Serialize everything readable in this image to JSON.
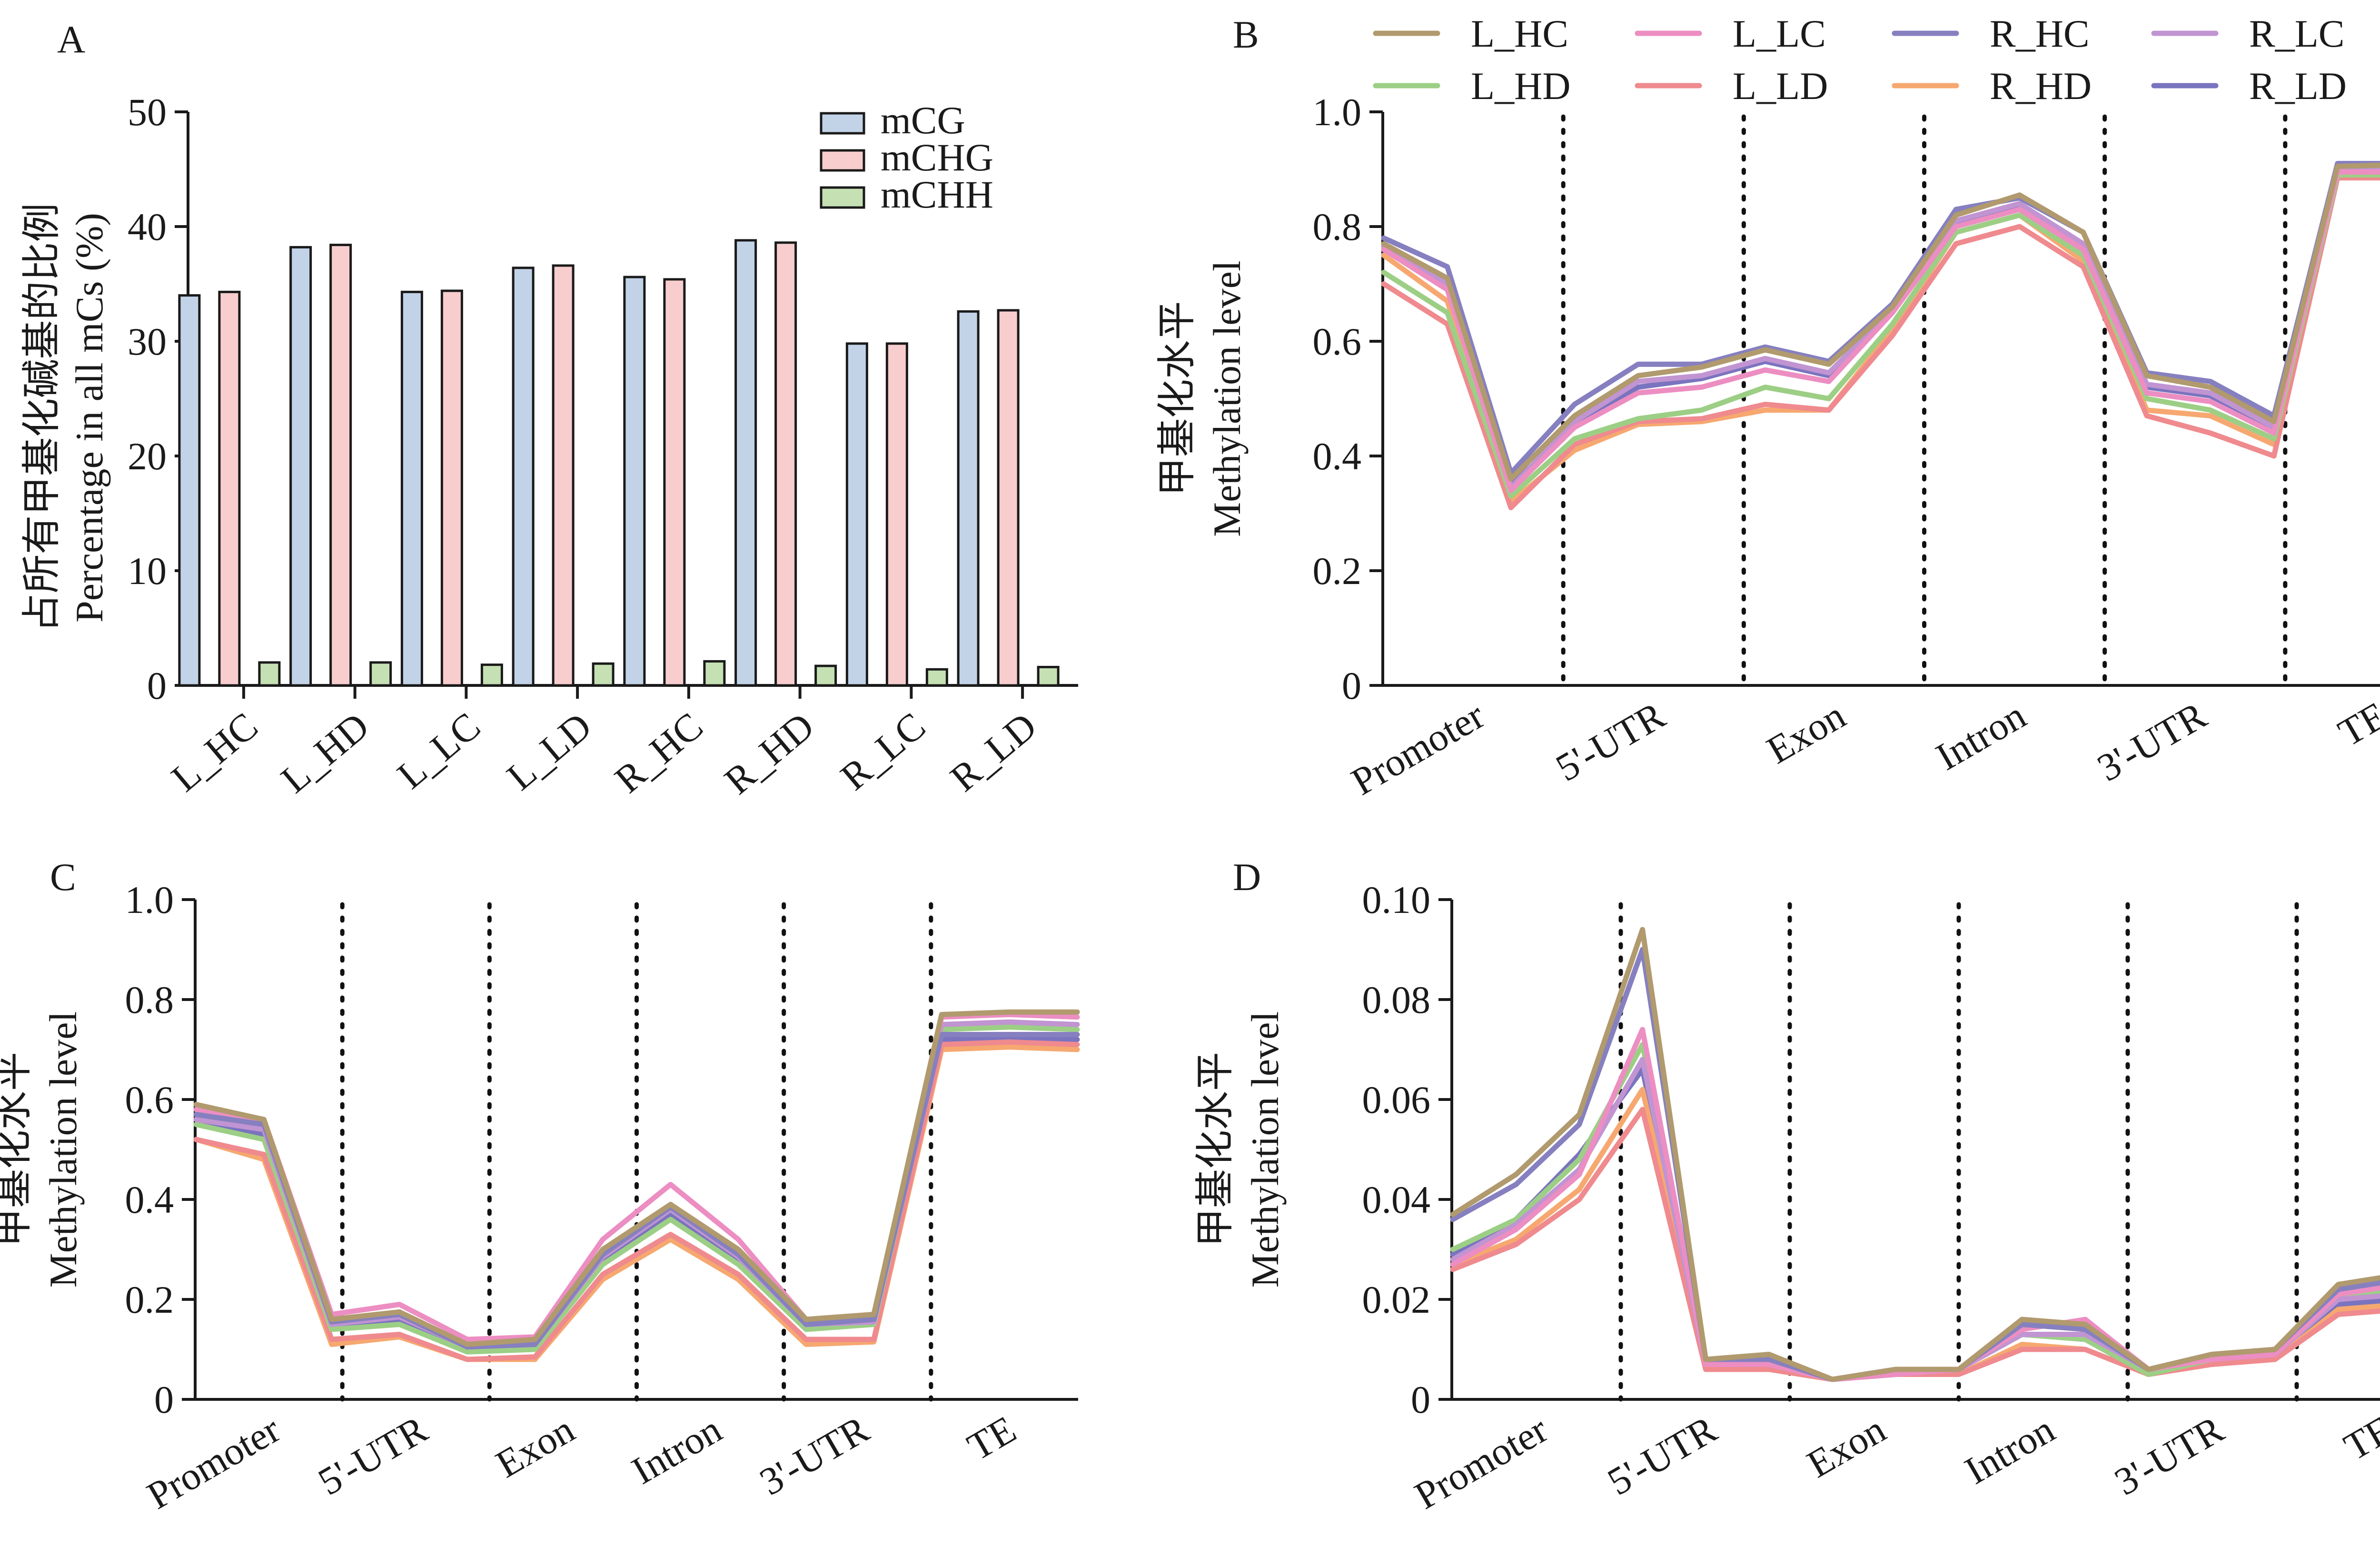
{
  "colors": {
    "bar_series": [
      "#c2d3e8",
      "#f8cdcd",
      "#c5e0b3"
    ],
    "line_series": [
      "#b09a6e",
      "#9ccf85",
      "#ec8ec2",
      "#ef8a8e",
      "#8680c0",
      "#f6a870",
      "#c194d2",
      "#7a74bf"
    ]
  },
  "chart_data": [
    {
      "panel": "A",
      "type": "bar",
      "ylabel_cn": "占所有甲基化碱基的比例",
      "ylabel": "Percentage in all mCs (%)",
      "categories": [
        "L_HC",
        "L_HD",
        "L_LC",
        "L_LD",
        "R_HC",
        "R_HD",
        "R_LC",
        "R_LD"
      ],
      "series": [
        {
          "name": "mCG",
          "values": [
            34.0,
            38.2,
            34.3,
            36.4,
            35.6,
            38.8,
            29.8,
            32.6
          ]
        },
        {
          "name": "mCHG",
          "values": [
            34.3,
            38.4,
            34.4,
            36.6,
            35.4,
            38.6,
            29.8,
            32.7
          ]
        },
        {
          "name": "mCHH",
          "values": [
            2.0,
            2.0,
            1.8,
            1.9,
            2.1,
            1.7,
            1.4,
            1.6
          ]
        }
      ],
      "ylim": [
        0,
        50
      ],
      "yticks": [
        "0",
        "10",
        "20",
        "30",
        "40",
        "50"
      ],
      "legend": "top-right"
    },
    {
      "panel": "B",
      "type": "line",
      "ylabel_cn": "甲基化水平",
      "ylabel": "Methylation level",
      "regions": [
        "Promoter",
        "5'-UTR",
        "Exon",
        "Intron",
        "3'-UTR",
        "TE"
      ],
      "ylim": [
        0,
        1.0
      ],
      "yticks": [
        "0",
        "0.2",
        "0.4",
        "0.6",
        "0.8",
        "1.0"
      ],
      "legend": "top",
      "legend_labels": [
        "L_HC",
        "L_HD",
        "L_LC",
        "L_LD",
        "R_HC",
        "R_HD",
        "R_LC",
        "R_LD"
      ],
      "series": [
        {
          "name": "L_HC",
          "values": [
            0.77,
            0.71,
            0.36,
            0.47,
            0.54,
            0.555,
            0.585,
            0.56,
            0.66,
            0.82,
            0.855,
            0.79,
            0.54,
            0.52,
            0.46,
            0.905,
            0.908,
            0.91
          ]
        },
        {
          "name": "L_HD",
          "values": [
            0.72,
            0.65,
            0.33,
            0.43,
            0.465,
            0.48,
            0.52,
            0.5,
            0.63,
            0.79,
            0.82,
            0.75,
            0.5,
            0.48,
            0.43,
            0.89,
            0.89,
            0.895
          ]
        },
        {
          "name": "L_LC",
          "values": [
            0.76,
            0.69,
            0.34,
            0.45,
            0.51,
            0.52,
            0.55,
            0.53,
            0.65,
            0.8,
            0.83,
            0.76,
            0.51,
            0.495,
            0.44,
            0.895,
            0.895,
            0.895
          ]
        },
        {
          "name": "L_LD",
          "values": [
            0.7,
            0.63,
            0.31,
            0.42,
            0.46,
            0.465,
            0.49,
            0.48,
            0.61,
            0.77,
            0.8,
            0.73,
            0.47,
            0.44,
            0.4,
            0.885,
            0.885,
            0.885
          ]
        },
        {
          "name": "R_HC",
          "values": [
            0.78,
            0.73,
            0.37,
            0.49,
            0.56,
            0.56,
            0.59,
            0.565,
            0.665,
            0.83,
            0.85,
            0.79,
            0.545,
            0.53,
            0.47,
            0.91,
            0.91,
            0.915
          ]
        },
        {
          "name": "R_HD",
          "values": [
            0.75,
            0.67,
            0.32,
            0.41,
            0.455,
            0.46,
            0.48,
            0.48,
            0.62,
            0.79,
            0.82,
            0.74,
            0.48,
            0.47,
            0.42,
            0.89,
            0.89,
            0.89
          ]
        },
        {
          "name": "R_LC",
          "values": [
            0.765,
            0.7,
            0.345,
            0.46,
            0.53,
            0.54,
            0.57,
            0.545,
            0.655,
            0.81,
            0.84,
            0.77,
            0.525,
            0.51,
            0.45,
            0.9,
            0.9,
            0.9
          ]
        },
        {
          "name": "R_LD",
          "values": [
            0.76,
            0.7,
            0.35,
            0.45,
            0.52,
            0.535,
            0.565,
            0.54,
            0.65,
            0.805,
            0.835,
            0.77,
            0.52,
            0.505,
            0.445,
            0.9,
            0.898,
            0.9
          ]
        }
      ]
    },
    {
      "panel": "C",
      "type": "line",
      "ylabel_cn": "甲基化水平",
      "ylabel": "Methylation level",
      "regions": [
        "Promoter",
        "5'-UTR",
        "Exon",
        "Intron",
        "3'-UTR",
        "TE"
      ],
      "ylim": [
        0,
        1.0
      ],
      "yticks": [
        "0",
        "0.2",
        "0.4",
        "0.6",
        "0.8",
        "1.0"
      ],
      "series": [
        {
          "name": "L_HC",
          "values": [
            0.59,
            0.56,
            0.16,
            0.175,
            0.11,
            0.12,
            0.3,
            0.39,
            0.3,
            0.16,
            0.17,
            0.77,
            0.775,
            0.775
          ]
        },
        {
          "name": "L_HD",
          "values": [
            0.55,
            0.52,
            0.14,
            0.15,
            0.095,
            0.1,
            0.27,
            0.36,
            0.27,
            0.14,
            0.15,
            0.74,
            0.745,
            0.74
          ]
        },
        {
          "name": "L_LC",
          "values": [
            0.58,
            0.56,
            0.17,
            0.19,
            0.12,
            0.125,
            0.32,
            0.43,
            0.32,
            0.16,
            0.17,
            0.765,
            0.77,
            0.765
          ]
        },
        {
          "name": "L_LD",
          "values": [
            0.52,
            0.49,
            0.12,
            0.13,
            0.08,
            0.085,
            0.25,
            0.33,
            0.25,
            0.12,
            0.12,
            0.71,
            0.715,
            0.71
          ]
        },
        {
          "name": "R_HC",
          "values": [
            0.57,
            0.55,
            0.155,
            0.17,
            0.105,
            0.11,
            0.29,
            0.385,
            0.29,
            0.15,
            0.16,
            0.73,
            0.73,
            0.73
          ]
        },
        {
          "name": "R_HD",
          "values": [
            0.52,
            0.48,
            0.11,
            0.125,
            0.08,
            0.08,
            0.24,
            0.32,
            0.24,
            0.11,
            0.115,
            0.7,
            0.705,
            0.7
          ]
        },
        {
          "name": "R_LC",
          "values": [
            0.56,
            0.54,
            0.15,
            0.165,
            0.105,
            0.11,
            0.285,
            0.38,
            0.285,
            0.15,
            0.155,
            0.75,
            0.755,
            0.75
          ]
        },
        {
          "name": "R_LD",
          "values": [
            0.56,
            0.53,
            0.15,
            0.16,
            0.1,
            0.11,
            0.28,
            0.37,
            0.28,
            0.145,
            0.15,
            0.72,
            0.725,
            0.72
          ]
        }
      ]
    },
    {
      "panel": "D",
      "type": "line",
      "ylabel_cn": "甲基化水平",
      "ylabel": "Methylation level",
      "regions": [
        "Promoter",
        "5'-UTR",
        "Exon",
        "Intron",
        "3'-UTR",
        "TE"
      ],
      "ylim": [
        0,
        0.1
      ],
      "yticks": [
        "0",
        "0.02",
        "0.04",
        "0.06",
        "0.08",
        "0.10"
      ],
      "series": [
        {
          "name": "L_HC",
          "values": [
            0.037,
            0.045,
            0.057,
            0.094,
            0.008,
            0.009,
            0.004,
            0.006,
            0.006,
            0.016,
            0.015,
            0.006,
            0.009,
            0.01,
            0.023,
            0.025,
            0.024
          ]
        },
        {
          "name": "L_HD",
          "values": [
            0.03,
            0.036,
            0.048,
            0.071,
            0.007,
            0.008,
            0.004,
            0.005,
            0.006,
            0.013,
            0.012,
            0.005,
            0.008,
            0.009,
            0.02,
            0.022,
            0.021
          ]
        },
        {
          "name": "L_LC",
          "values": [
            0.027,
            0.034,
            0.045,
            0.074,
            0.007,
            0.007,
            0.004,
            0.005,
            0.006,
            0.014,
            0.016,
            0.006,
            0.008,
            0.009,
            0.021,
            0.023,
            0.022
          ]
        },
        {
          "name": "L_LD",
          "values": [
            0.026,
            0.031,
            0.04,
            0.058,
            0.006,
            0.006,
            0.004,
            0.005,
            0.005,
            0.01,
            0.01,
            0.005,
            0.007,
            0.008,
            0.017,
            0.018,
            0.017
          ]
        },
        {
          "name": "R_HC",
          "values": [
            0.036,
            0.043,
            0.055,
            0.09,
            0.008,
            0.008,
            0.004,
            0.006,
            0.006,
            0.015,
            0.014,
            0.006,
            0.009,
            0.01,
            0.022,
            0.024,
            0.023
          ]
        },
        {
          "name": "R_HD",
          "values": [
            0.027,
            0.032,
            0.042,
            0.062,
            0.006,
            0.006,
            0.004,
            0.005,
            0.005,
            0.011,
            0.01,
            0.005,
            0.007,
            0.008,
            0.018,
            0.019,
            0.018
          ]
        },
        {
          "name": "R_LC",
          "values": [
            0.028,
            0.035,
            0.046,
            0.068,
            0.007,
            0.007,
            0.004,
            0.005,
            0.006,
            0.013,
            0.013,
            0.006,
            0.008,
            0.009,
            0.02,
            0.021,
            0.02
          ]
        },
        {
          "name": "R_LD",
          "values": [
            0.029,
            0.036,
            0.049,
            0.066,
            0.007,
            0.007,
            0.004,
            0.005,
            0.006,
            0.013,
            0.012,
            0.005,
            0.008,
            0.009,
            0.019,
            0.02,
            0.019
          ]
        }
      ]
    }
  ]
}
